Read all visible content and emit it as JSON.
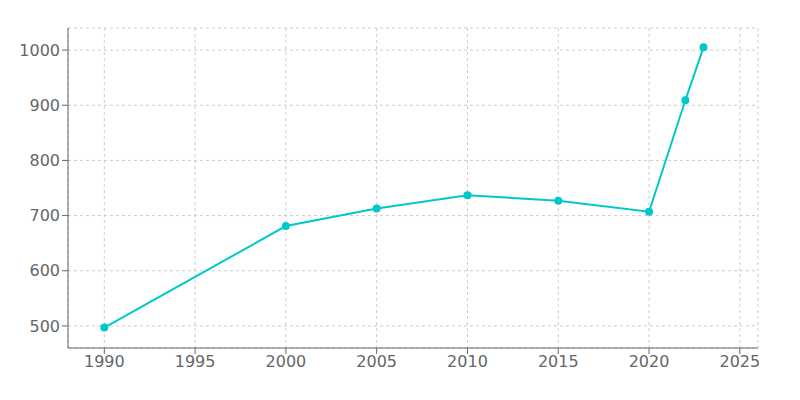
{
  "chart_data": {
    "type": "line",
    "x": [
      1990,
      2000,
      2005,
      2010,
      2015,
      2020,
      2022,
      2023
    ],
    "values": [
      497,
      681,
      713,
      737,
      727,
      707,
      909,
      1005
    ],
    "color": "#00C8C8",
    "marker": "circle",
    "xlim": [
      1988,
      2026
    ],
    "ylim": [
      460,
      1040
    ],
    "xticks": [
      1990,
      1995,
      2000,
      2005,
      2010,
      2015,
      2020,
      2025
    ],
    "yticks": [
      500,
      600,
      700,
      800,
      900,
      1000
    ],
    "grid": true
  }
}
